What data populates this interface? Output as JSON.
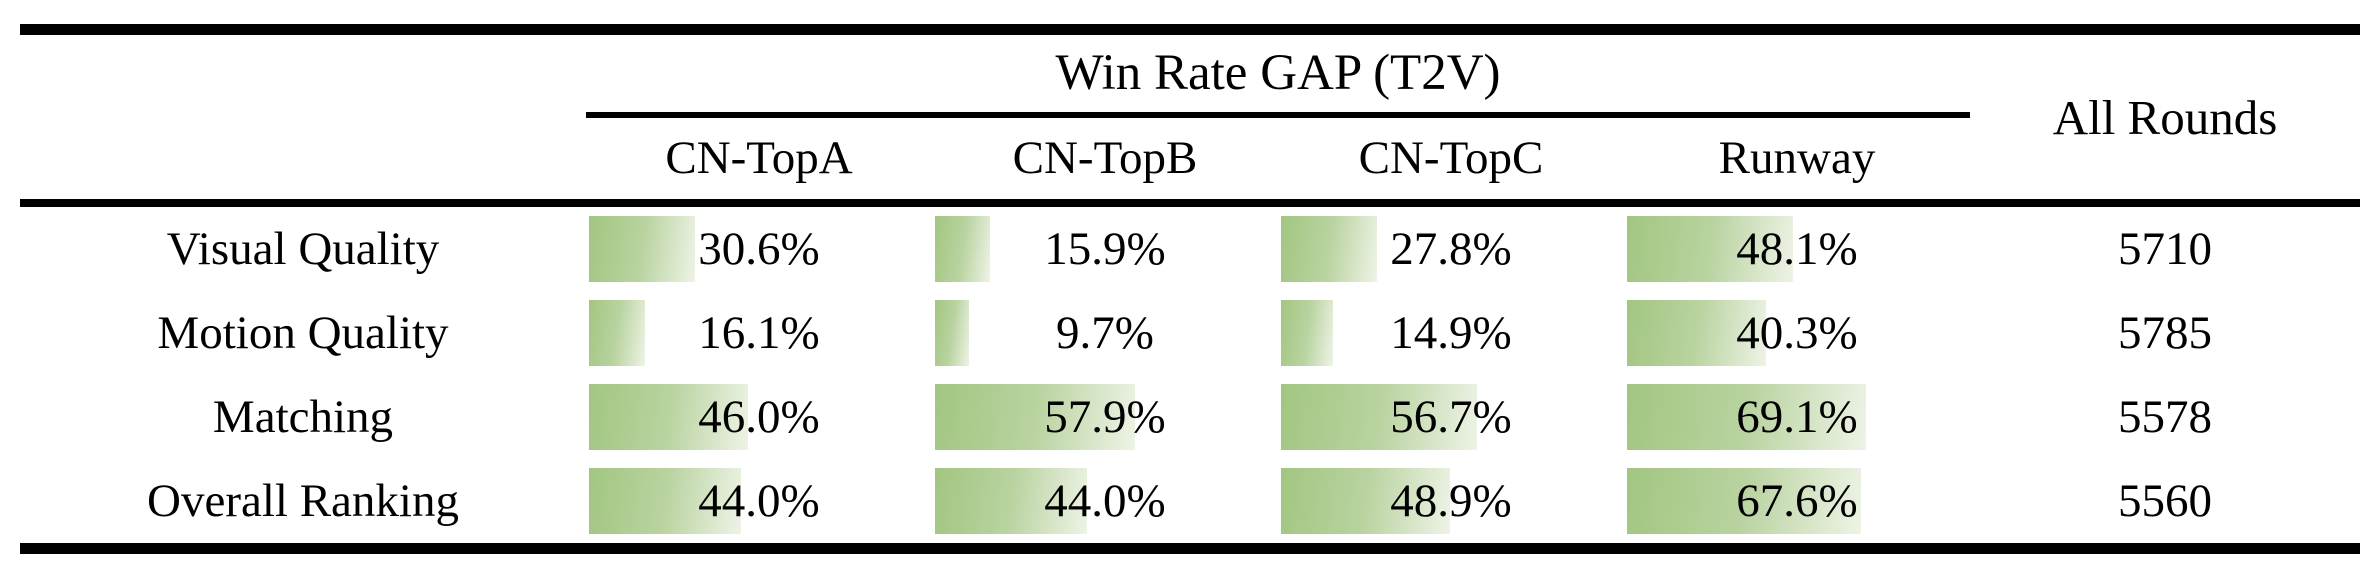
{
  "table": {
    "title": "Win Rate GAP (T2V)",
    "all_rounds_header": "All Rounds",
    "columns": [
      "CN-TopA",
      "CN-TopB",
      "CN-TopC",
      "Runway"
    ],
    "rows": [
      {
        "label": "Visual Quality",
        "cells": [
          "30.6%",
          "15.9%",
          "27.8%",
          "48.1%"
        ],
        "bar_pcts": [
          30.6,
          15.9,
          27.8,
          48.1
        ],
        "all_rounds": "5710"
      },
      {
        "label": "Motion Quality",
        "cells": [
          "16.1%",
          "9.7%",
          "14.9%",
          "40.3%"
        ],
        "bar_pcts": [
          16.1,
          9.7,
          14.9,
          40.3
        ],
        "all_rounds": "5785"
      },
      {
        "label": "Matching",
        "cells": [
          "46.0%",
          "57.9%",
          "56.7%",
          "69.1%"
        ],
        "bar_pcts": [
          46.0,
          57.9,
          56.7,
          69.1
        ],
        "all_rounds": "5578"
      },
      {
        "label": "Overall Ranking",
        "cells": [
          "44.0%",
          "44.0%",
          "48.9%",
          "67.6%"
        ],
        "bar_pcts": [
          44.0,
          44.0,
          48.9,
          67.6
        ],
        "all_rounds": "5560"
      }
    ]
  },
  "colors": {
    "bar_green": "#a2c681",
    "bar_fade": "#eef3e6",
    "rule_black": "#000000",
    "background": "#ffffff"
  },
  "chart_data": {
    "type": "table",
    "title": "Win Rate GAP (T2V)",
    "columns": [
      "CN-TopA",
      "CN-TopB",
      "CN-TopC",
      "Runway",
      "All Rounds"
    ],
    "row_labels": [
      "Visual Quality",
      "Motion Quality",
      "Matching",
      "Overall Ranking"
    ],
    "win_rate_gap_pct": [
      [
        30.6,
        15.9,
        27.8,
        48.1
      ],
      [
        16.1,
        9.7,
        14.9,
        40.3
      ],
      [
        46.0,
        57.9,
        56.7,
        69.1
      ],
      [
        44.0,
        44.0,
        48.9,
        67.6
      ]
    ],
    "all_rounds": [
      5710,
      5785,
      5578,
      5560
    ],
    "layout_hints": "left-anchored green gradient bars behind each percentage, bar length proportional to value; booktabs-style horizontal rules only"
  }
}
